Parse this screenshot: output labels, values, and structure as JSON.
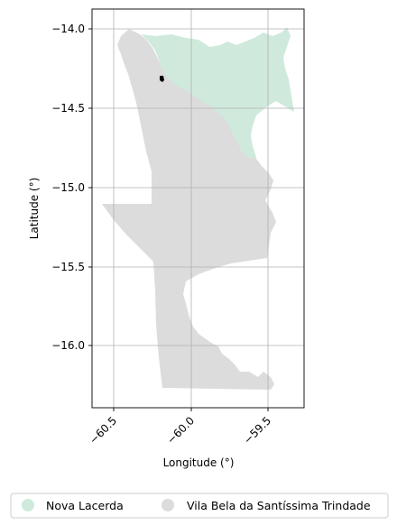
{
  "map": {
    "xlabel": "Longitude (°)",
    "ylabel": "Latitude (°)",
    "x_ticks": [
      {
        "value": -60.5,
        "label": "−60.5"
      },
      {
        "value": -60.0,
        "label": "−60.0"
      },
      {
        "value": -59.5,
        "label": "−59.5"
      }
    ],
    "y_ticks": [
      {
        "value": -14.0,
        "label": "−14.0"
      },
      {
        "value": -14.5,
        "label": "−14.5"
      },
      {
        "value": -15.0,
        "label": "−15.0"
      },
      {
        "value": -15.5,
        "label": "−15.5"
      },
      {
        "value": -16.0,
        "label": "−16.0"
      }
    ],
    "xlim": [
      -60.63,
      -59.29
    ],
    "ylim": [
      -16.39,
      -13.87
    ],
    "grid": true,
    "legend_position": "bottom",
    "regions": [
      {
        "name": "Nova Lacerda",
        "color": "#cfeadc"
      },
      {
        "name": "Vila Bela da Santíssima Trindade",
        "color": "#dcdcdc"
      }
    ],
    "marker_color": "#000000"
  },
  "legend": {
    "items": [
      {
        "label": "Nova Lacerda",
        "color": "#cfeadc"
      },
      {
        "label": "Vila Bela da Santíssima Trindade",
        "color": "#dcdcdc"
      }
    ]
  }
}
